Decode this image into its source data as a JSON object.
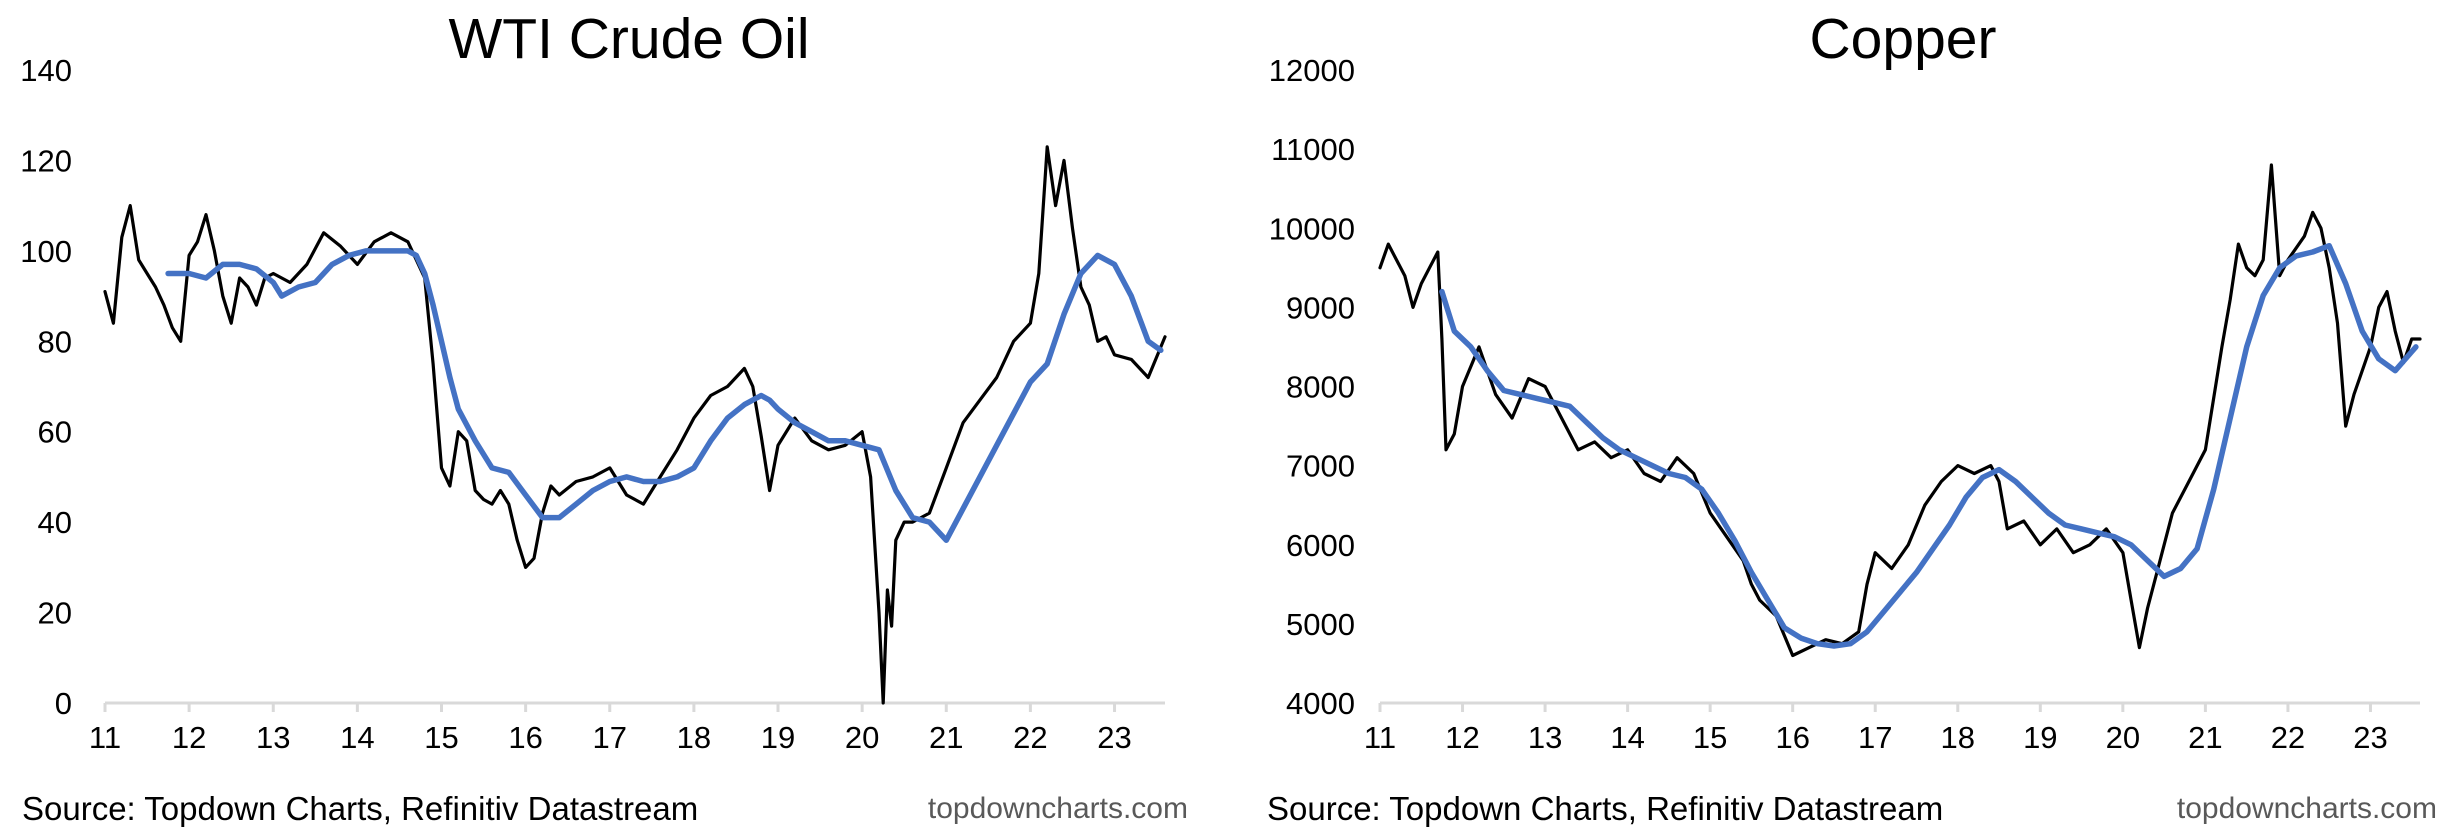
{
  "charts": [
    {
      "chart_data": {
        "type": "line",
        "title": "WTI Crude Oil",
        "xlabel": "",
        "ylabel": "",
        "x_tick_labels": [
          "11",
          "12",
          "13",
          "14",
          "15",
          "16",
          "17",
          "18",
          "19",
          "20",
          "21",
          "22",
          "23"
        ],
        "xlim": [
          2011.0,
          2023.6
        ],
        "ylim": [
          0,
          140
        ],
        "y_ticks": [
          0,
          20,
          40,
          60,
          80,
          100,
          120,
          140
        ],
        "y_tick_labels": [
          "0",
          "20",
          "40",
          "60",
          "80",
          "100",
          "120",
          "140"
        ],
        "grid": false,
        "legend": "none",
        "series": [
          {
            "role": "price",
            "color": "#000000",
            "x": [
              2011.0,
              2011.1,
              2011.2,
              2011.3,
              2011.4,
              2011.5,
              2011.6,
              2011.7,
              2011.8,
              2011.9,
              2012.0,
              2012.1,
              2012.2,
              2012.3,
              2012.4,
              2012.5,
              2012.6,
              2012.7,
              2012.8,
              2012.9,
              2013.0,
              2013.2,
              2013.4,
              2013.6,
              2013.8,
              2014.0,
              2014.2,
              2014.4,
              2014.6,
              2014.8,
              2014.9,
              2015.0,
              2015.1,
              2015.2,
              2015.3,
              2015.4,
              2015.5,
              2015.6,
              2015.7,
              2015.8,
              2015.9,
              2016.0,
              2016.1,
              2016.2,
              2016.3,
              2016.4,
              2016.6,
              2016.8,
              2017.0,
              2017.2,
              2017.4,
              2017.6,
              2017.8,
              2018.0,
              2018.2,
              2018.4,
              2018.6,
              2018.7,
              2018.8,
              2018.9,
              2019.0,
              2019.2,
              2019.4,
              2019.6,
              2019.8,
              2020.0,
              2020.1,
              2020.2,
              2020.25,
              2020.3,
              2020.35,
              2020.4,
              2020.5,
              2020.6,
              2020.8,
              2021.0,
              2021.2,
              2021.4,
              2021.6,
              2021.8,
              2022.0,
              2022.1,
              2022.2,
              2022.3,
              2022.4,
              2022.5,
              2022.6,
              2022.7,
              2022.8,
              2022.9,
              2023.0,
              2023.2,
              2023.4,
              2023.6
            ],
            "y": [
              91,
              84,
              103,
              110,
              98,
              95,
              92,
              88,
              83,
              80,
              99,
              102,
              108,
              100,
              90,
              84,
              94,
              92,
              88,
              94,
              95,
              93,
              97,
              104,
              101,
              97,
              102,
              104,
              102,
              94,
              75,
              52,
              48,
              60,
              58,
              47,
              45,
              44,
              47,
              44,
              36,
              30,
              32,
              42,
              48,
              46,
              49,
              50,
              52,
              46,
              44,
              50,
              56,
              63,
              68,
              70,
              74,
              70,
              59,
              47,
              57,
              63,
              58,
              56,
              57,
              60,
              50,
              20,
              0,
              25,
              17,
              36,
              40,
              40,
              42,
              52,
              62,
              67,
              72,
              80,
              84,
              95,
              123,
              110,
              120,
              105,
              92,
              88,
              80,
              81,
              77,
              76,
              72,
              81
            ]
          },
          {
            "role": "moving average",
            "color": "#4472C4",
            "x": [
              2011.75,
              2012.0,
              2012.2,
              2012.4,
              2012.6,
              2012.8,
              2013.0,
              2013.1,
              2013.3,
              2013.5,
              2013.7,
              2013.9,
              2014.1,
              2014.3,
              2014.5,
              2014.6,
              2014.7,
              2014.8,
              2014.9,
              2015.0,
              2015.1,
              2015.2,
              2015.4,
              2015.6,
              2015.8,
              2016.0,
              2016.2,
              2016.4,
              2016.6,
              2016.8,
              2017.0,
              2017.2,
              2017.4,
              2017.6,
              2017.8,
              2018.0,
              2018.2,
              2018.4,
              2018.6,
              2018.8,
              2018.9,
              2019.0,
              2019.2,
              2019.4,
              2019.6,
              2019.8,
              2020.0,
              2020.2,
              2020.4,
              2020.6,
              2020.8,
              2021.0,
              2021.2,
              2021.4,
              2021.6,
              2021.8,
              2022.0,
              2022.2,
              2022.4,
              2022.6,
              2022.8,
              2023.0,
              2023.2,
              2023.4,
              2023.55
            ],
            "y": [
              95,
              95,
              94,
              97,
              97,
              96,
              93,
              90,
              92,
              93,
              97,
              99,
              100,
              100,
              100,
              100,
              99,
              95,
              88,
              80,
              72,
              65,
              58,
              52,
              51,
              46,
              41,
              41,
              44,
              47,
              49,
              50,
              49,
              49,
              50,
              52,
              58,
              63,
              66,
              68,
              67,
              65,
              62,
              60,
              58,
              58,
              57,
              56,
              47,
              41,
              40,
              36,
              43,
              50,
              57,
              64,
              71,
              75,
              86,
              95,
              99,
              97,
              90,
              80,
              78
            ]
          }
        ]
      },
      "footer": {
        "source": "Source: Topdown Charts, Refinitiv Datastream",
        "brand": "topdowncharts.com"
      }
    },
    {
      "chart_data": {
        "type": "line",
        "title": "Copper",
        "xlabel": "",
        "ylabel": "",
        "x_tick_labels": [
          "11",
          "12",
          "13",
          "14",
          "15",
          "16",
          "17",
          "18",
          "19",
          "20",
          "21",
          "22",
          "23"
        ],
        "xlim": [
          2011.0,
          2023.6
        ],
        "ylim": [
          4000,
          12000
        ],
        "y_ticks": [
          4000,
          5000,
          6000,
          7000,
          8000,
          9000,
          10000,
          11000,
          12000
        ],
        "y_tick_labels": [
          "4000",
          "5000",
          "6000",
          "7000",
          "8000",
          "9000",
          "10000",
          "11000",
          "12000"
        ],
        "grid": false,
        "legend": "none",
        "series": [
          {
            "role": "price",
            "color": "#000000",
            "x": [
              2011.0,
              2011.1,
              2011.2,
              2011.3,
              2011.4,
              2011.5,
              2011.6,
              2011.7,
              2011.75,
              2011.8,
              2011.9,
              2012.0,
              2012.2,
              2012.4,
              2012.6,
              2012.8,
              2013.0,
              2013.2,
              2013.4,
              2013.6,
              2013.8,
              2014.0,
              2014.2,
              2014.4,
              2014.6,
              2014.8,
              2015.0,
              2015.2,
              2015.4,
              2015.5,
              2015.6,
              2015.8,
              2016.0,
              2016.2,
              2016.4,
              2016.6,
              2016.8,
              2016.9,
              2017.0,
              2017.2,
              2017.4,
              2017.6,
              2017.8,
              2018.0,
              2018.2,
              2018.4,
              2018.5,
              2018.6,
              2018.8,
              2019.0,
              2019.2,
              2019.4,
              2019.6,
              2019.8,
              2020.0,
              2020.1,
              2020.2,
              2020.3,
              2020.4,
              2020.6,
              2020.8,
              2021.0,
              2021.2,
              2021.3,
              2021.4,
              2021.5,
              2021.6,
              2021.7,
              2021.8,
              2021.9,
              2022.0,
              2022.2,
              2022.3,
              2022.4,
              2022.5,
              2022.6,
              2022.7,
              2022.8,
              2023.0,
              2023.1,
              2023.2,
              2023.3,
              2023.4,
              2023.5,
              2023.6
            ],
            "y": [
              9500,
              9800,
              9600,
              9400,
              9000,
              9300,
              9500,
              9700,
              8600,
              7200,
              7400,
              8000,
              8500,
              7900,
              7600,
              8100,
              8000,
              7600,
              7200,
              7300,
              7100,
              7200,
              6900,
              6800,
              7100,
              6900,
              6400,
              6100,
              5800,
              5500,
              5300,
              5100,
              4600,
              4700,
              4800,
              4750,
              4900,
              5500,
              5900,
              5700,
              6000,
              6500,
              6800,
              7000,
              6900,
              7000,
              6800,
              6200,
              6300,
              6000,
              6200,
              5900,
              6000,
              6200,
              5900,
              5300,
              4700,
              5200,
              5600,
              6400,
              6800,
              7200,
              8500,
              9100,
              9800,
              9500,
              9400,
              9600,
              10800,
              9400,
              9600,
              9900,
              10200,
              10000,
              9500,
              8800,
              7500,
              7900,
              8500,
              9000,
              9200,
              8700,
              8300,
              8600,
              8600
            ]
          },
          {
            "role": "moving average",
            "color": "#4472C4",
            "x": [
              2011.75,
              2011.9,
              2012.1,
              2012.3,
              2012.5,
              2012.7,
              2012.9,
              2013.1,
              2013.3,
              2013.5,
              2013.7,
              2013.9,
              2014.1,
              2014.3,
              2014.5,
              2014.7,
              2014.9,
              2015.1,
              2015.3,
              2015.5,
              2015.7,
              2015.9,
              2016.1,
              2016.3,
              2016.5,
              2016.7,
              2016.9,
              2017.1,
              2017.3,
              2017.5,
              2017.7,
              2017.9,
              2018.1,
              2018.3,
              2018.5,
              2018.7,
              2018.9,
              2019.1,
              2019.3,
              2019.5,
              2019.7,
              2019.9,
              2020.1,
              2020.3,
              2020.5,
              2020.7,
              2020.9,
              2021.1,
              2021.3,
              2021.5,
              2021.7,
              2021.9,
              2022.1,
              2022.3,
              2022.5,
              2022.7,
              2022.9,
              2023.1,
              2023.3,
              2023.55
            ],
            "y": [
              9200,
              8700,
              8500,
              8200,
              7950,
              7900,
              7850,
              7800,
              7750,
              7550,
              7350,
              7200,
              7100,
              7000,
              6900,
              6850,
              6700,
              6400,
              6050,
              5650,
              5300,
              4950,
              4820,
              4750,
              4720,
              4750,
              4900,
              5150,
              5400,
              5650,
              5950,
              6250,
              6600,
              6850,
              6950,
              6800,
              6600,
              6400,
              6250,
              6200,
              6150,
              6100,
              6000,
              5800,
              5600,
              5700,
              5950,
              6700,
              7600,
              8500,
              9150,
              9500,
              9650,
              9700,
              9780,
              9300,
              8700,
              8350,
              8200,
              8500
            ]
          }
        ]
      },
      "footer": {
        "source": "Source: Topdown Charts, Refinitiv Datastream",
        "brand": "topdowncharts.com"
      }
    }
  ]
}
